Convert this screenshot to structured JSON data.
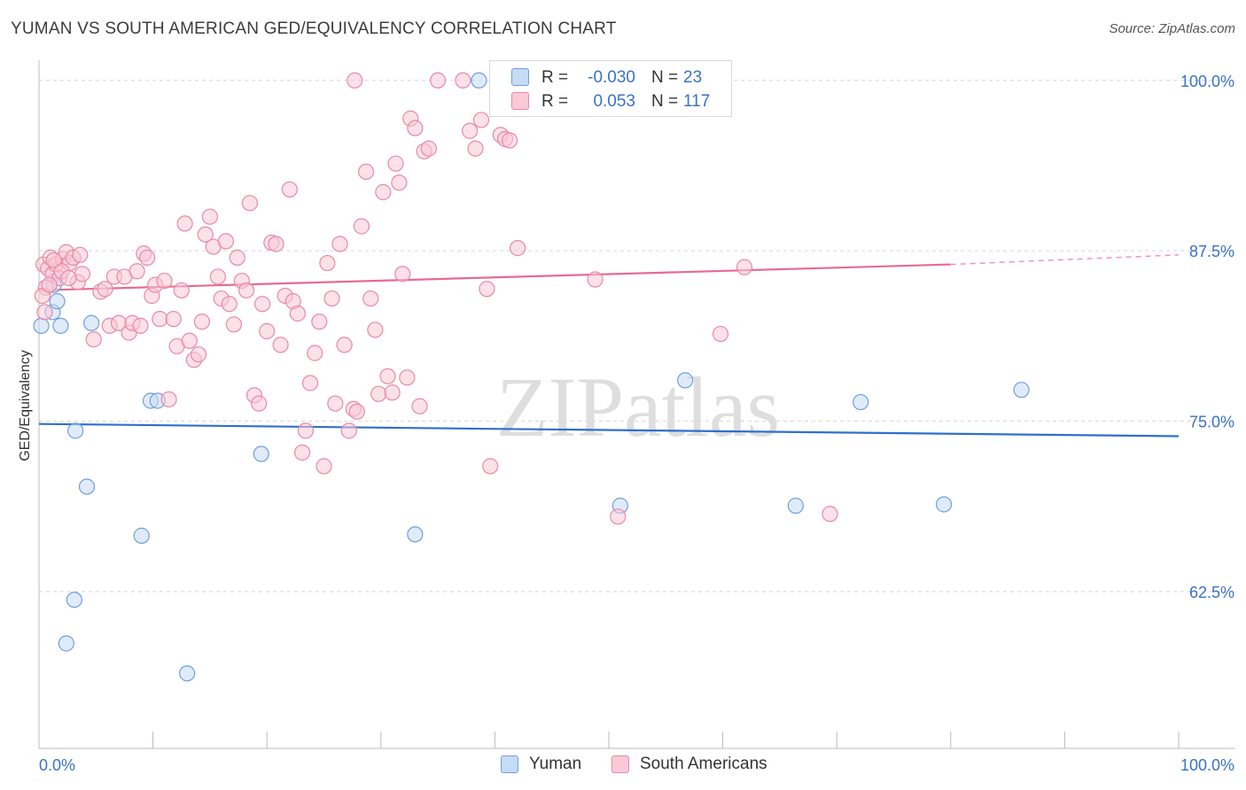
{
  "header": {
    "title": "YUMAN VS SOUTH AMERICAN GED/EQUIVALENCY CORRELATION CHART",
    "source": "Source: ZipAtlas.com"
  },
  "legend": {
    "rows": [
      {
        "r_label": "R =",
        "r_value": "-0.030",
        "n_label": "N =",
        "n_value": "23"
      },
      {
        "r_label": "R =",
        "r_value": "0.053",
        "n_label": "N =",
        "n_value": "117"
      }
    ]
  },
  "bottom_legend": {
    "yuman": "Yuman",
    "south_americans": "South Americans"
  },
  "colors": {
    "yuman_fill": "#c6dbf5",
    "yuman_stroke": "#6f9fdc",
    "yuman_line": "#2f6fcc",
    "sa_fill": "#f9c9d7",
    "sa_stroke": "#e889a7",
    "sa_line": "#e56b93",
    "tick_text": "#3a72c8",
    "grid": "#d5d5d5"
  },
  "chart_data": {
    "type": "scatter",
    "title": "YUMAN VS SOUTH AMERICAN GED/EQUIVALENCY CORRELATION CHART",
    "xlabel": "",
    "ylabel": "GED/Equivalency",
    "xlim": [
      0,
      100
    ],
    "ylim": [
      51,
      102
    ],
    "x_tick_labels": [
      "0.0%",
      "100.0%"
    ],
    "y_ticks": [
      62.5,
      75.0,
      87.5,
      100.0
    ],
    "y_tick_labels": [
      "62.5%",
      "75.0%",
      "87.5%",
      "100.0%"
    ],
    "watermark": "ZIPatlas",
    "series": [
      {
        "name": "Yuman",
        "r": -0.03,
        "n": 23,
        "trend": {
          "x0": 0,
          "y0": 74.8,
          "x1": 100,
          "y1": 73.9
        },
        "points": [
          [
            0.2,
            82.0
          ],
          [
            1.2,
            83.0
          ],
          [
            1.3,
            85.0
          ],
          [
            1.6,
            83.8
          ],
          [
            1.9,
            82.0
          ],
          [
            3.2,
            74.3
          ],
          [
            4.2,
            70.2
          ],
          [
            4.6,
            82.2
          ],
          [
            9.0,
            66.6
          ],
          [
            9.8,
            76.5
          ],
          [
            10.4,
            76.5
          ],
          [
            13.0,
            56.5
          ],
          [
            19.5,
            72.6
          ],
          [
            2.4,
            58.7
          ],
          [
            3.1,
            61.9
          ],
          [
            33.0,
            66.7
          ],
          [
            38.6,
            100.0
          ],
          [
            51.0,
            68.8
          ],
          [
            56.7,
            78.0
          ],
          [
            66.4,
            68.8
          ],
          [
            72.1,
            76.4
          ],
          [
            79.4,
            68.9
          ],
          [
            86.2,
            77.3
          ]
        ]
      },
      {
        "name": "South Americans",
        "r": 0.053,
        "n": 117,
        "trend": {
          "x0": 0,
          "y0": 84.6,
          "x1": 80,
          "y1": 86.5,
          "dash_to_x": 100,
          "dash_to_y": 87.2
        },
        "points": [
          [
            0.4,
            86.5
          ],
          [
            0.6,
            84.8
          ],
          [
            0.8,
            86.2
          ],
          [
            1.0,
            87.0
          ],
          [
            1.2,
            85.8
          ],
          [
            1.5,
            86.5
          ],
          [
            1.8,
            85.5
          ],
          [
            2.1,
            86.9
          ],
          [
            2.4,
            87.4
          ],
          [
            2.7,
            86.6
          ],
          [
            3.0,
            87.0
          ],
          [
            3.4,
            85.2
          ],
          [
            3.8,
            85.8
          ],
          [
            0.3,
            84.2
          ],
          [
            0.5,
            83.0
          ],
          [
            0.9,
            85.0
          ],
          [
            1.3,
            86.8
          ],
          [
            2.0,
            86.0
          ],
          [
            2.6,
            85.5
          ],
          [
            3.6,
            87.2
          ],
          [
            4.8,
            81.0
          ],
          [
            5.4,
            84.5
          ],
          [
            5.8,
            84.7
          ],
          [
            6.2,
            82.0
          ],
          [
            6.6,
            85.6
          ],
          [
            7.0,
            82.2
          ],
          [
            7.5,
            85.6
          ],
          [
            7.9,
            81.5
          ],
          [
            8.2,
            82.2
          ],
          [
            8.6,
            86.0
          ],
          [
            8.9,
            82.0
          ],
          [
            9.2,
            87.3
          ],
          [
            9.5,
            87.0
          ],
          [
            9.9,
            84.2
          ],
          [
            10.2,
            85.0
          ],
          [
            10.6,
            82.5
          ],
          [
            11.0,
            85.3
          ],
          [
            11.4,
            76.6
          ],
          [
            11.8,
            82.5
          ],
          [
            12.1,
            80.5
          ],
          [
            12.5,
            84.6
          ],
          [
            12.8,
            89.5
          ],
          [
            13.2,
            80.9
          ],
          [
            13.6,
            79.5
          ],
          [
            14.0,
            79.9
          ],
          [
            14.3,
            82.3
          ],
          [
            14.6,
            88.7
          ],
          [
            15.0,
            90.0
          ],
          [
            15.3,
            87.8
          ],
          [
            15.7,
            85.6
          ],
          [
            16.0,
            84.0
          ],
          [
            16.4,
            88.2
          ],
          [
            16.7,
            83.6
          ],
          [
            17.1,
            82.1
          ],
          [
            17.4,
            87.0
          ],
          [
            17.8,
            85.3
          ],
          [
            18.2,
            84.6
          ],
          [
            18.5,
            91.0
          ],
          [
            18.9,
            76.9
          ],
          [
            19.3,
            76.3
          ],
          [
            19.6,
            83.6
          ],
          [
            20.0,
            81.6
          ],
          [
            20.4,
            88.1
          ],
          [
            20.8,
            88.0
          ],
          [
            21.2,
            80.6
          ],
          [
            21.6,
            84.2
          ],
          [
            22.0,
            92.0
          ],
          [
            22.3,
            83.8
          ],
          [
            22.7,
            82.9
          ],
          [
            23.1,
            72.7
          ],
          [
            23.4,
            74.3
          ],
          [
            23.8,
            77.8
          ],
          [
            24.2,
            80.0
          ],
          [
            24.6,
            82.3
          ],
          [
            25.0,
            71.7
          ],
          [
            25.3,
            86.6
          ],
          [
            25.7,
            84.0
          ],
          [
            26.0,
            76.3
          ],
          [
            26.4,
            88.0
          ],
          [
            26.8,
            80.6
          ],
          [
            27.2,
            74.3
          ],
          [
            27.6,
            75.9
          ],
          [
            27.9,
            75.7
          ],
          [
            28.3,
            89.3
          ],
          [
            28.7,
            93.3
          ],
          [
            29.1,
            84.0
          ],
          [
            29.5,
            81.7
          ],
          [
            29.8,
            77.0
          ],
          [
            30.2,
            91.8
          ],
          [
            30.6,
            78.3
          ],
          [
            31.0,
            77.1
          ],
          [
            31.3,
            93.9
          ],
          [
            31.6,
            92.5
          ],
          [
            31.9,
            85.8
          ],
          [
            32.3,
            78.2
          ],
          [
            32.6,
            97.2
          ],
          [
            33.0,
            96.5
          ],
          [
            33.4,
            76.1
          ],
          [
            33.8,
            94.8
          ],
          [
            34.2,
            95.0
          ],
          [
            35.0,
            100.0
          ],
          [
            37.2,
            100.0
          ],
          [
            37.8,
            96.3
          ],
          [
            38.3,
            95.0
          ],
          [
            38.8,
            97.1
          ],
          [
            39.3,
            84.7
          ],
          [
            39.6,
            71.7
          ],
          [
            40.5,
            96.0
          ],
          [
            40.9,
            95.7
          ],
          [
            41.3,
            95.6
          ],
          [
            42.0,
            87.7
          ],
          [
            48.8,
            85.4
          ],
          [
            50.8,
            68.0
          ],
          [
            59.8,
            81.4
          ],
          [
            61.9,
            86.3
          ],
          [
            69.4,
            68.2
          ],
          [
            27.7,
            100.0
          ]
        ]
      }
    ]
  }
}
